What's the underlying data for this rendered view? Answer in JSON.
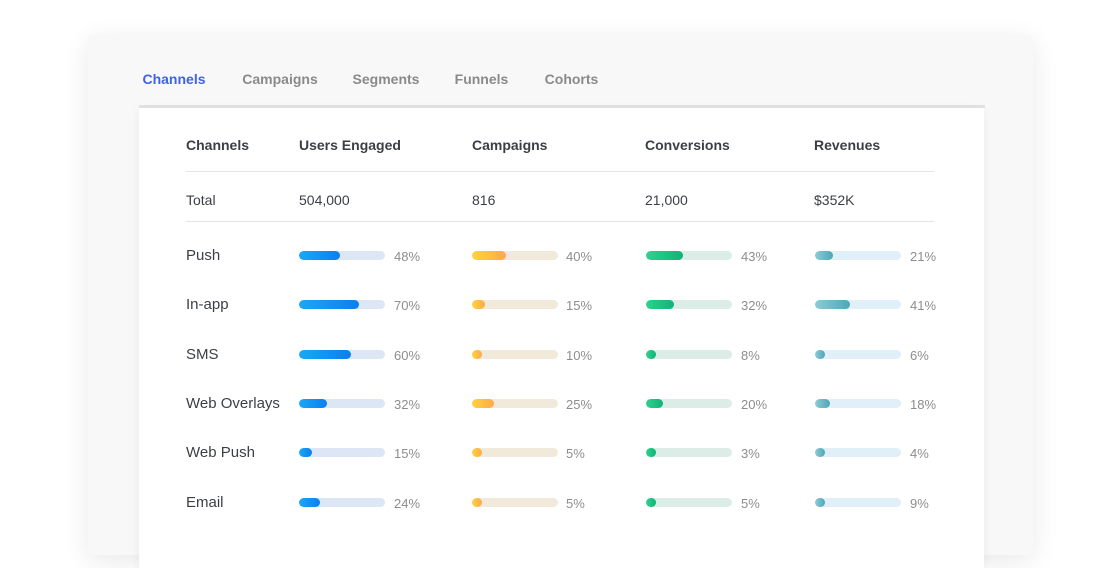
{
  "tabs": [
    {
      "label": "Channels",
      "active": true
    },
    {
      "label": "Campaigns",
      "active": false
    },
    {
      "label": "Segments",
      "active": false
    },
    {
      "label": "Funnels",
      "active": false
    },
    {
      "label": "Cohorts",
      "active": false
    }
  ],
  "table": {
    "headers": [
      "Channels",
      "Users Engaged",
      "Campaigns",
      "Conversions",
      "Revenues"
    ],
    "total": {
      "label": "Total",
      "users_engaged": "504,000",
      "campaigns": "816",
      "conversions": "21,000",
      "revenues": "$352K"
    },
    "rows": [
      {
        "channel": "Push",
        "users_engaged": 48,
        "campaigns": 40,
        "conversions": 43,
        "revenues": 21,
        "users_engaged_label": "48%",
        "campaigns_label": "40%",
        "conversions_label": "43%",
        "revenues_label": "21%"
      },
      {
        "channel": "In-app",
        "users_engaged": 70,
        "campaigns": 15,
        "conversions": 32,
        "revenues": 41,
        "users_engaged_label": "70%",
        "campaigns_label": "15%",
        "conversions_label": "32%",
        "revenues_label": "41%"
      },
      {
        "channel": "SMS",
        "users_engaged": 60,
        "campaigns": 10,
        "conversions": 8,
        "revenues": 6,
        "users_engaged_label": "60%",
        "campaigns_label": "10%",
        "conversions_label": "8%",
        "revenues_label": "6%"
      },
      {
        "channel": "Web Overlays",
        "users_engaged": 32,
        "campaigns": 25,
        "conversions": 20,
        "revenues": 18,
        "users_engaged_label": "32%",
        "campaigns_label": "25%",
        "conversions_label": "20%",
        "revenues_label": "18%"
      },
      {
        "channel": "Web Push",
        "users_engaged": 15,
        "campaigns": 5,
        "conversions": 3,
        "revenues": 4,
        "users_engaged_label": "15%",
        "campaigns_label": "5%",
        "conversions_label": "3%",
        "revenues_label": "4%"
      },
      {
        "channel": "Email",
        "users_engaged": 24,
        "campaigns": 5,
        "conversions": 5,
        "revenues": 9,
        "users_engaged_label": "24%",
        "campaigns_label": "5%",
        "conversions_label": "5%",
        "revenues_label": "9%"
      }
    ]
  },
  "colors": {
    "accent": "#3d63e8",
    "users_engaged": {
      "fill_start": "#1aa8f5",
      "fill_end": "#0b7ff0",
      "track": "#dde6f5"
    },
    "campaigns": {
      "fill_start": "#ffd33d",
      "fill_end": "#ffa94a",
      "track": "#f1eadb"
    },
    "conversions": {
      "fill_start": "#2fd28c",
      "fill_end": "#0fb377",
      "track": "#dcece6"
    },
    "revenues": {
      "fill_start": "#8ecbd6",
      "fill_end": "#4da7b6",
      "track": "#e1eff8"
    }
  }
}
